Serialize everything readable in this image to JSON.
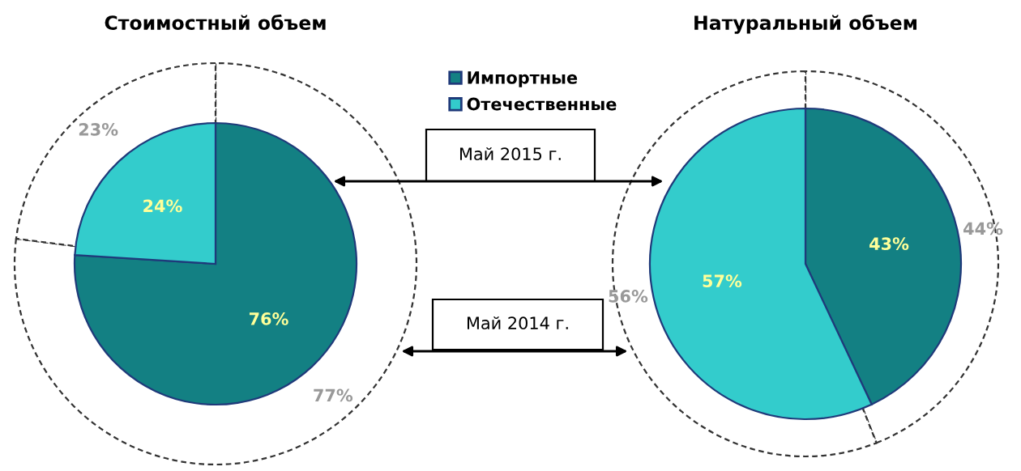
{
  "chart_data": [
    {
      "type": "pie",
      "title": "Стоимостный объем",
      "categories": [
        "Импортные",
        "Отечественные"
      ],
      "series": [
        {
          "values": [
            76,
            24
          ],
          "colors": [
            "#138083",
            "#33cccc"
          ],
          "value_labels": [
            "76%",
            "24%"
          ]
        },
        {
          "values": [
            77,
            23
          ],
          "colors": [
            "#ffffff",
            "#ffffff"
          ],
          "value_labels": [
            "77%",
            "23%"
          ]
        }
      ],
      "legend": "right",
      "annotations": [
        "Май 2015 г.",
        "Май 2014 г."
      ]
    },
    {
      "type": "pie",
      "title": "Натуральный объем",
      "categories": [
        null,
        null
      ],
      "series": [
        {
          "values": [
            43,
            57
          ],
          "colors": [
            "#138083",
            "#33cccc"
          ],
          "value_labels": [
            "43%",
            "57%"
          ]
        },
        {
          "values": [
            44,
            56
          ],
          "colors": [
            "#ffffff",
            "#ffffff"
          ],
          "value_labels": [
            "44%",
            "56%"
          ]
        }
      ]
    }
  ]
}
